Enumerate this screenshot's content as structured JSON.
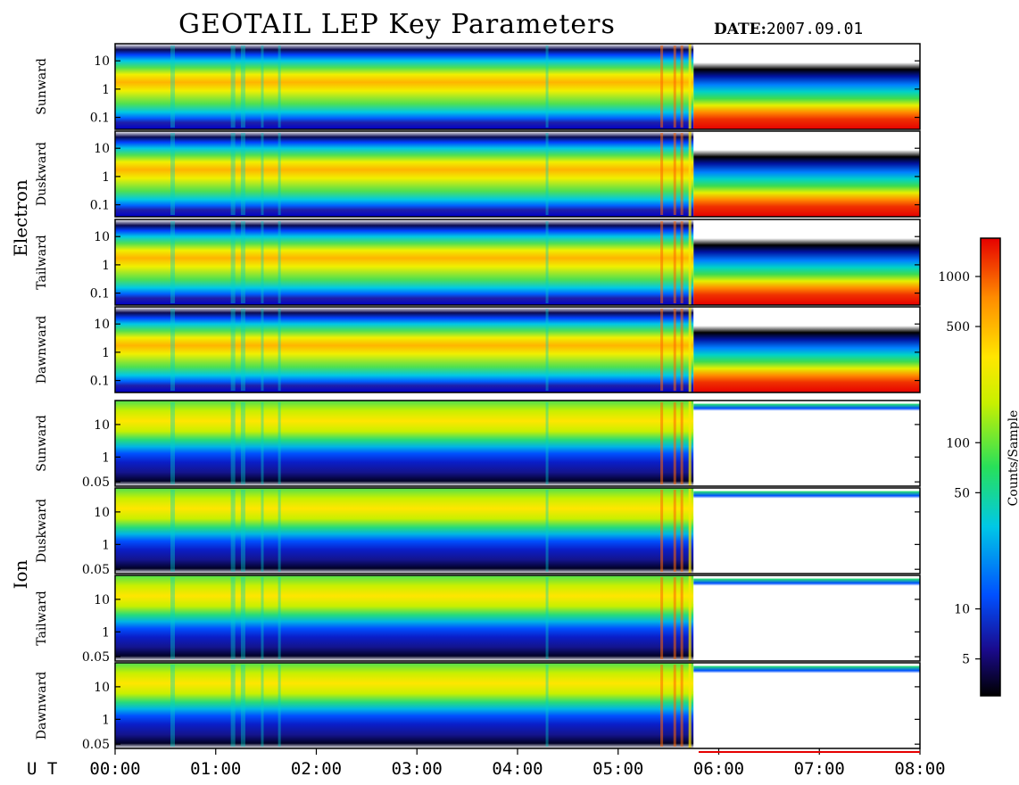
{
  "header": {
    "title": "GEOTAIL LEP Key Parameters",
    "date_label": "DATE:",
    "date_value": "2007.09.01"
  },
  "chart_data": {
    "type": "heatmap",
    "title": "GEOTAIL LEP Key Parameters",
    "date": "2007.09.01",
    "x_axis": {
      "label": "U T",
      "range": [
        "00:00",
        "08:00"
      ],
      "ticks": [
        "00:00",
        "01:00",
        "02:00",
        "03:00",
        "04:00",
        "05:00",
        "06:00",
        "07:00",
        "08:00"
      ]
    },
    "groups": [
      {
        "name": "Electron",
        "y_ticks": [
          "10",
          "1",
          "0.1"
        ],
        "panels": [
          "Sunward",
          "Duskward",
          "Tailward",
          "Dawnward"
        ]
      },
      {
        "name": "Ion",
        "y_ticks": [
          "10",
          "1",
          "0.05"
        ],
        "panels": [
          "Sunward",
          "Duskward",
          "Tailward",
          "Dawnward"
        ]
      }
    ],
    "colorbar": {
      "label": "Counts/Sample",
      "ticks": [
        "1000",
        "500",
        "100",
        "50",
        "10",
        "5"
      ],
      "scale": "log",
      "colors": [
        "#000000",
        "#1a0a8c",
        "#0050ff",
        "#00c8e6",
        "#28e05a",
        "#c8f000",
        "#ffe600",
        "#ff8c00",
        "#e60000"
      ]
    }
  }
}
